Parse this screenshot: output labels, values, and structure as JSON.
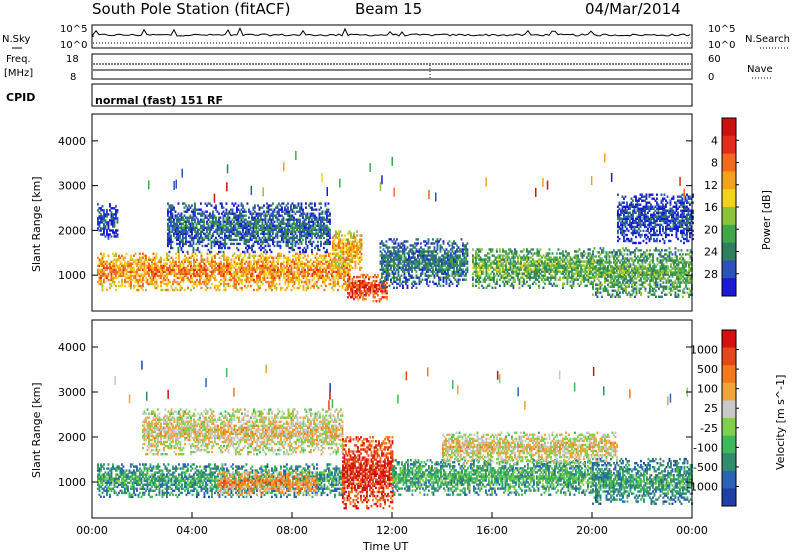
{
  "header": {
    "station": "South Pole Station (fitACF)",
    "beam": "Beam 15",
    "date": "04/Mar/2014"
  },
  "panels": {
    "nsky": {
      "label": "N.Sky",
      "ytick_top": "10^5",
      "ytick_bottom": "10^0"
    },
    "nsearch": {
      "label": "N.Search",
      "ytick_top": "10^5",
      "ytick_bottom": "10^0"
    },
    "freq": {
      "label_line1": "Freq.",
      "label_line2": "[MHz]",
      "ytick_top": "18",
      "ytick_bottom": "8"
    },
    "nave": {
      "label": "Nave",
      "ytick_top": "60",
      "ytick_bottom": "0"
    },
    "cpid": {
      "label": "CPID",
      "mode": "normal (fast) 151 RF"
    }
  },
  "chart_data": [
    {
      "type": "heatmap",
      "name": "power",
      "xlabel": "",
      "ylabel": "Slant Range [km]",
      "xlim": [
        0,
        24
      ],
      "ylim": [
        200,
        4600
      ],
      "yticks": [
        "1000",
        "2000",
        "3000",
        "4000"
      ],
      "colorbar": {
        "label": "Power [dB]",
        "ticks": [
          "4",
          "8",
          "12",
          "16",
          "20",
          "24",
          "28"
        ],
        "colors": [
          "#1a1ad6",
          "#2a52b8",
          "#2f7f5e",
          "#3fa64a",
          "#8bc43a",
          "#f2d21a",
          "#f3a21e",
          "#ef6a1d",
          "#e22b1b",
          "#cc1010"
        ]
      },
      "bands": [
        {
          "t0": 0.2,
          "t1": 10.3,
          "r0": 650,
          "r1": 1500,
          "level": 0.6
        },
        {
          "t0": 10.2,
          "t1": 11.8,
          "r0": 400,
          "r1": 1000,
          "level": 0.75
        },
        {
          "t0": 9.6,
          "t1": 10.8,
          "r0": 1100,
          "r1": 2000,
          "level": 0.55
        },
        {
          "t0": 3.0,
          "t1": 9.5,
          "r0": 1500,
          "r1": 2600,
          "level": 0.12
        },
        {
          "t0": 11.5,
          "t1": 15.0,
          "r0": 700,
          "r1": 1800,
          "level": 0.15
        },
        {
          "t0": 15.2,
          "t1": 20.0,
          "r0": 700,
          "r1": 1600,
          "level": 0.3
        },
        {
          "t0": 20.0,
          "t1": 24.0,
          "r0": 500,
          "r1": 1600,
          "level": 0.28
        },
        {
          "t0": 0.2,
          "t1": 1.0,
          "r0": 1800,
          "r1": 2600,
          "level": 0.05
        },
        {
          "t0": 21.0,
          "t1": 24.0,
          "r0": 1700,
          "r1": 2800,
          "level": 0.05
        }
      ]
    },
    {
      "type": "heatmap",
      "name": "velocity",
      "xlabel": "Time UT",
      "ylabel": "Slant Range [km]",
      "xlim": [
        0,
        24
      ],
      "ylim": [
        200,
        4600
      ],
      "yticks": [
        "1000",
        "2000",
        "3000",
        "4000"
      ],
      "xticks": [
        "00:00",
        "04:00",
        "08:00",
        "12:00",
        "16:00",
        "20:00",
        "00:00"
      ],
      "colorbar": {
        "label": "Velocity [m s^-1]",
        "ticks": [
          "1000",
          "500",
          "100",
          "25",
          "-25",
          "-100",
          "-500",
          "-1000"
        ],
        "colors": [
          "#1f3fa6",
          "#2a63b3",
          "#2f8c6d",
          "#3db85a",
          "#7fd04a",
          "#c8c8c8",
          "#f2a33a",
          "#f07a1c",
          "#e2481a",
          "#d41010"
        ]
      },
      "bands": [
        {
          "t0": 0.2,
          "t1": 10.0,
          "r0": 650,
          "r1": 1400,
          "level": 0.22
        },
        {
          "t0": 10.0,
          "t1": 12.0,
          "r0": 400,
          "r1": 2000,
          "level": 0.82
        },
        {
          "t0": 2.0,
          "t1": 10.0,
          "r0": 1600,
          "r1": 2600,
          "level": 0.5
        },
        {
          "t0": 12.0,
          "t1": 20.0,
          "r0": 700,
          "r1": 1500,
          "level": 0.25
        },
        {
          "t0": 14.0,
          "t1": 21.0,
          "r0": 1400,
          "r1": 2100,
          "level": 0.5
        },
        {
          "t0": 20.0,
          "t1": 24.0,
          "r0": 500,
          "r1": 1500,
          "level": 0.2
        },
        {
          "t0": 5.0,
          "t1": 9.0,
          "r0": 700,
          "r1": 1200,
          "level": 0.62
        }
      ]
    }
  ]
}
